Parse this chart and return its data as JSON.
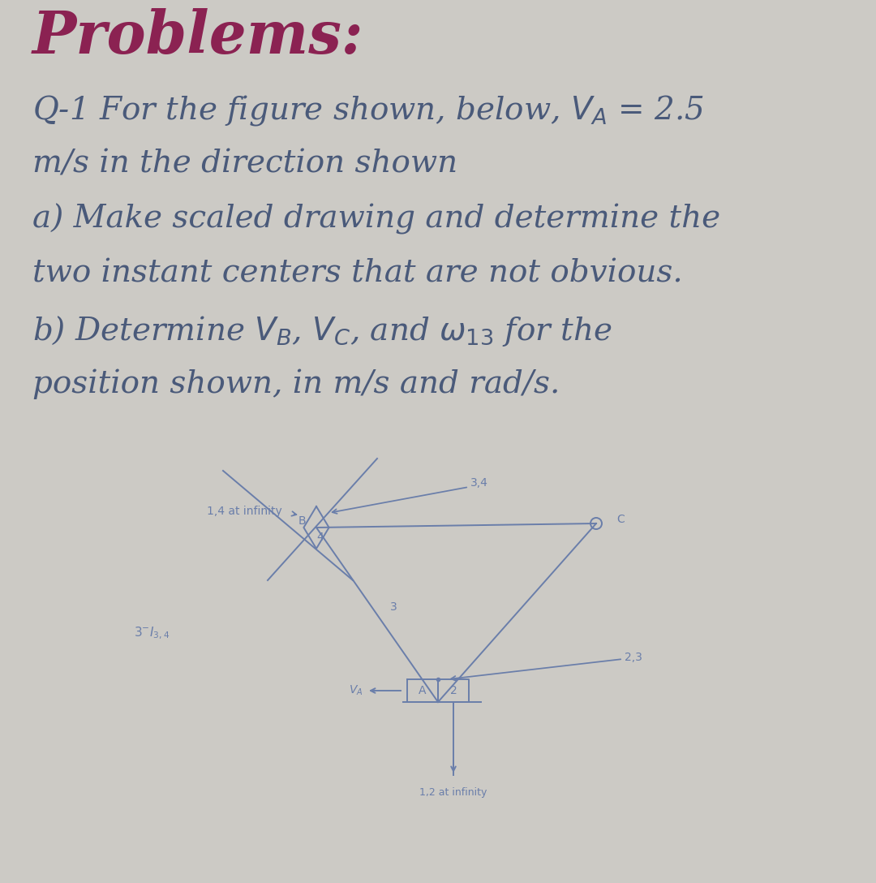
{
  "bg_color": "#cccac5",
  "title": "Problems:",
  "title_color": "#8B2252",
  "title_fontsize": 52,
  "body_color": "#4a5a7a",
  "body_fontsize": 28,
  "diagram_color": "#6a7eaa",
  "label_color": "#6a7eaa",
  "label_fontsize": 10,
  "B": [
    0.385,
    0.365
  ],
  "C": [
    0.71,
    0.365
  ],
  "A": [
    0.505,
    0.175
  ],
  "note_14_at_inf": "1,4 at infinity",
  "note_34": "3,4",
  "note_3": "3",
  "note_313_4": "3⁻I₃,₄",
  "note_23": "2,3",
  "note_va": "Vₐ",
  "note_12_inf": "1,2 at infinity"
}
